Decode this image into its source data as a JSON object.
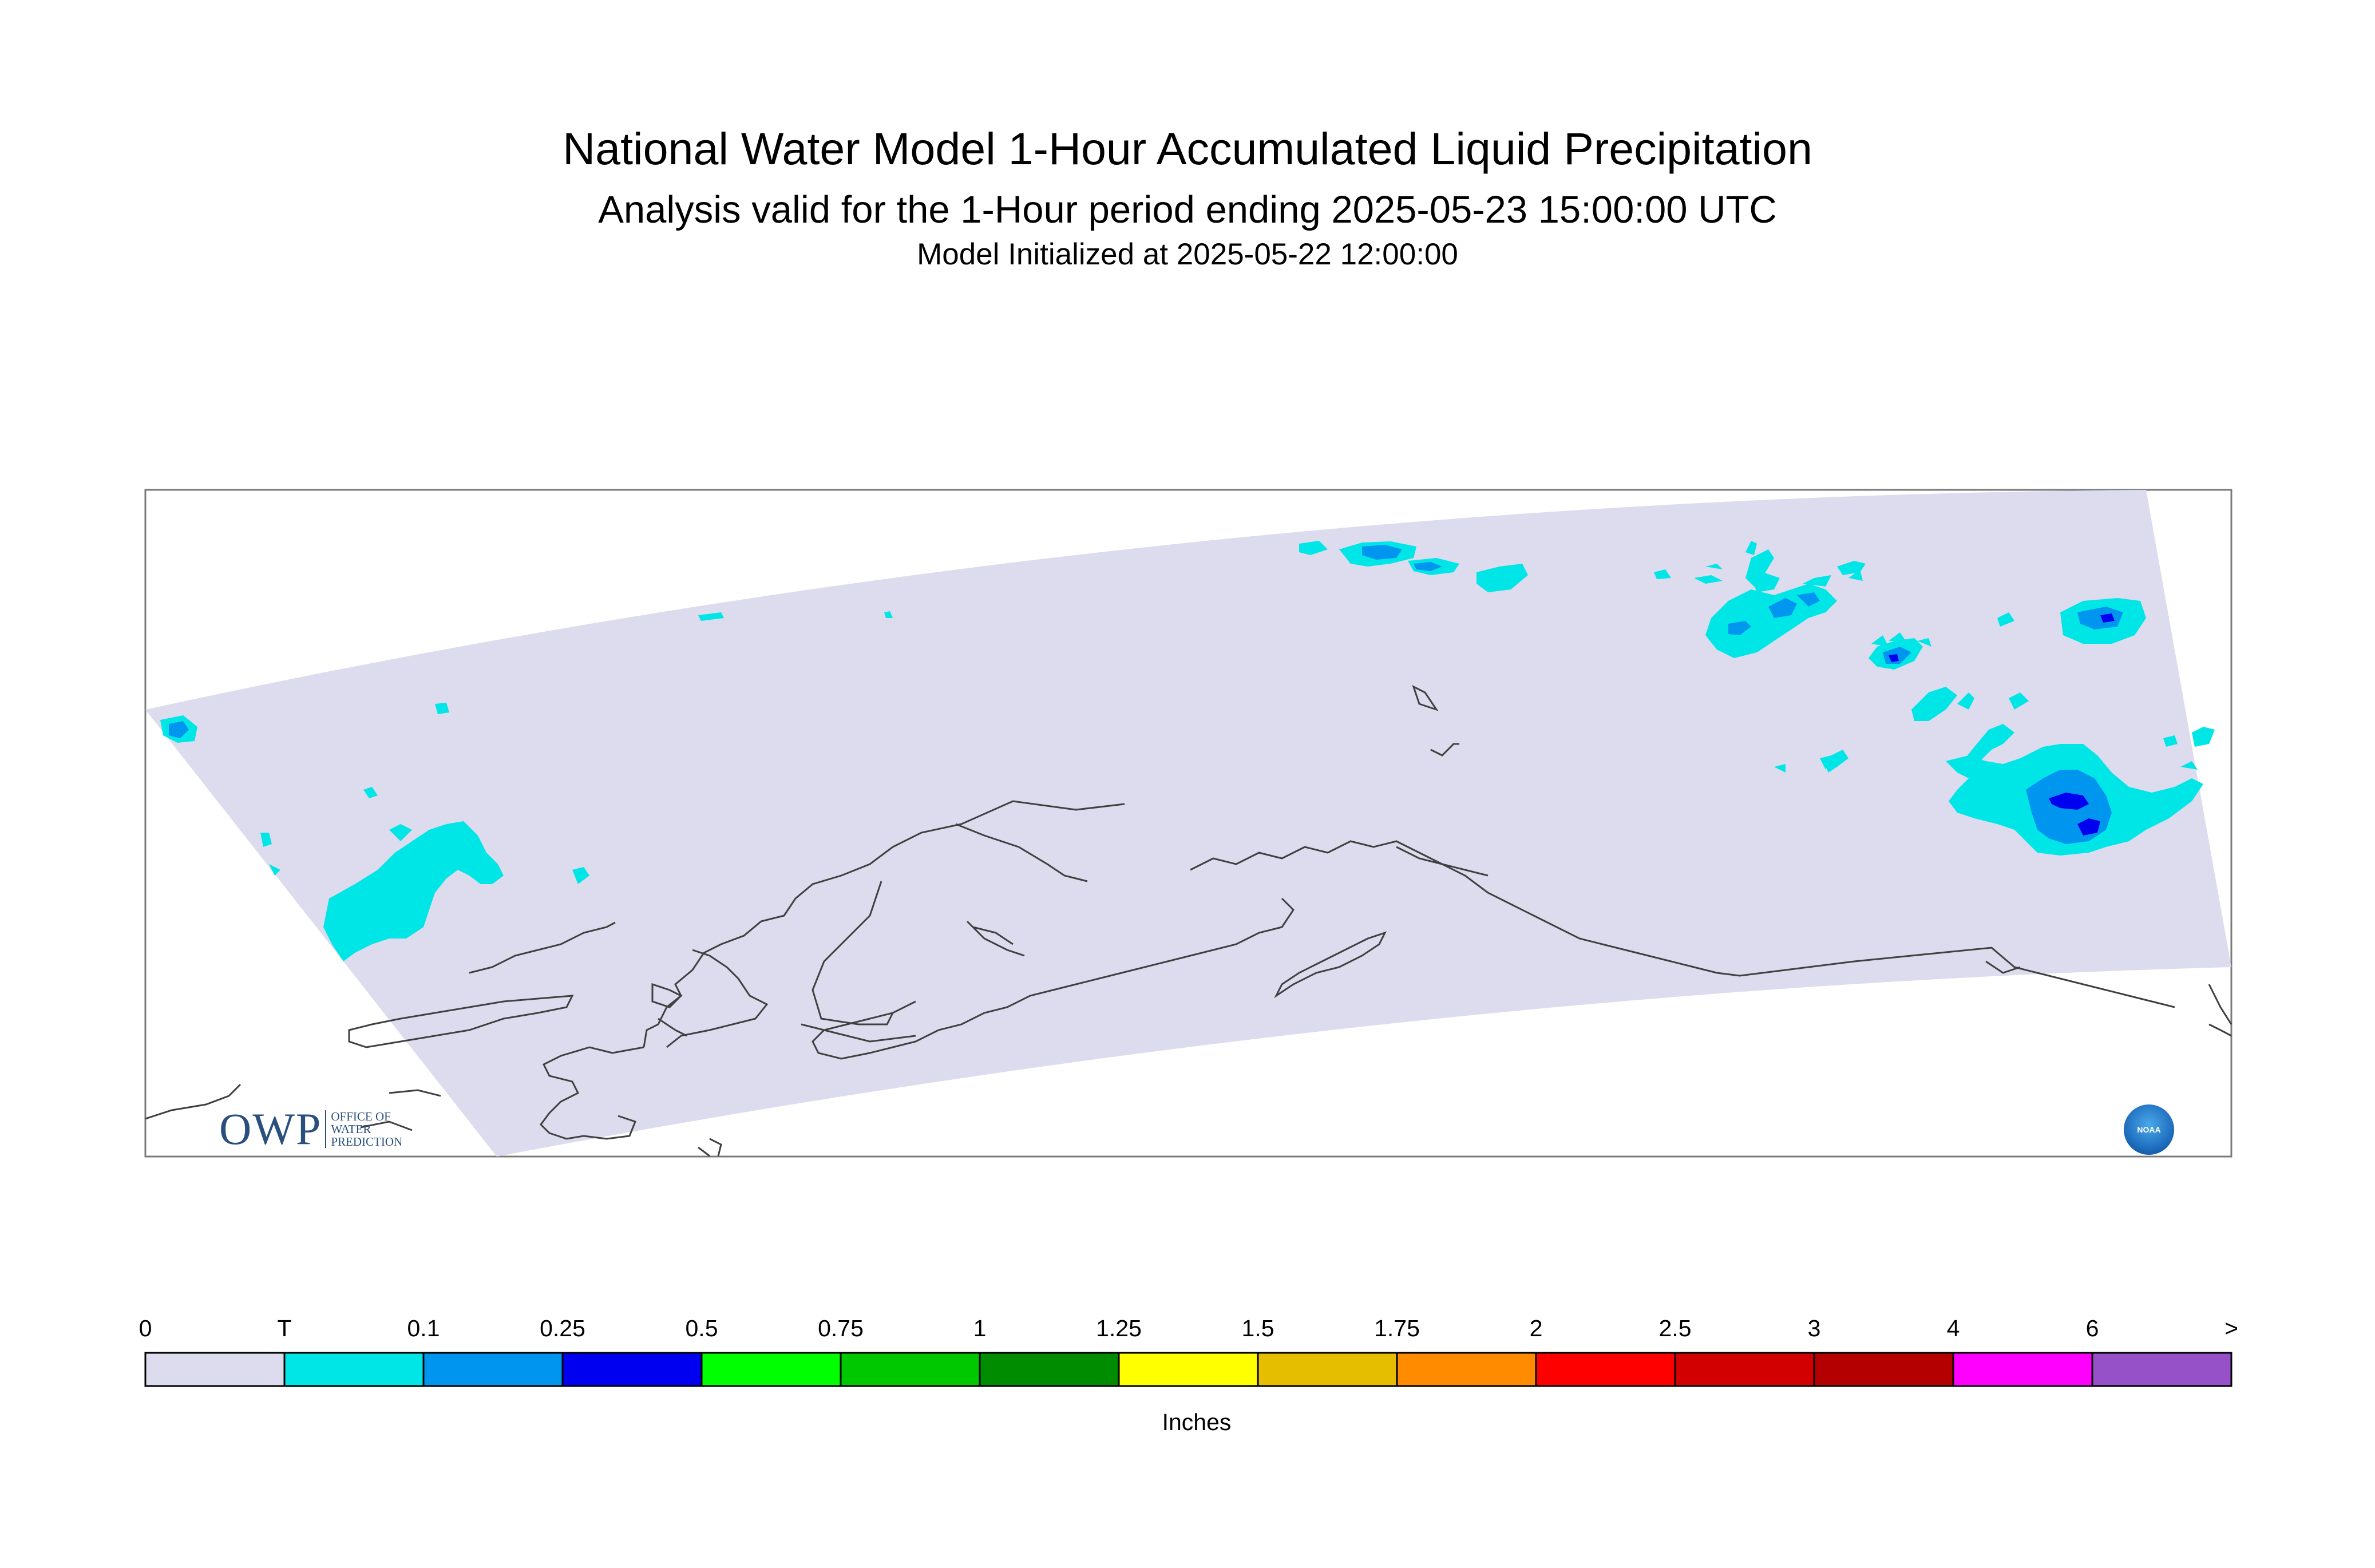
{
  "header": {
    "title": "National Water Model 1-Hour Accumulated Liquid Precipitation",
    "subtitle": "Analysis valid for the 1-Hour period ending 2025-05-23 15:00:00 UTC",
    "init": "Model Initialized at 2025-05-22 12:00:00"
  },
  "legend": {
    "unit": "Inches",
    "ticks": [
      "0",
      "T",
      "0.1",
      "0.25",
      "0.5",
      "0.75",
      "1",
      "1.25",
      "1.5",
      "1.75",
      "2",
      "2.5",
      "3",
      "4",
      "6",
      ">"
    ],
    "colors": [
      "#dcdcee",
      "#00e6e6",
      "#0096f0",
      "#0000f0",
      "#00ff00",
      "#00c800",
      "#008c00",
      "#ffff00",
      "#e6be00",
      "#ff8c00",
      "#ff0000",
      "#d20000",
      "#b40000",
      "#ff00ff",
      "#9650c8"
    ]
  },
  "logos": {
    "owp_big": "OWP",
    "owp_small": [
      "OFFICE OF",
      "WATER",
      "PREDICTION"
    ],
    "noaa": "NOAA"
  },
  "colors": {
    "domain_fill": "#dcdcee",
    "trace": "#00e6e6",
    "light_blue": "#0096f0",
    "dark_blue": "#0000f0",
    "coastline": "#404040"
  }
}
